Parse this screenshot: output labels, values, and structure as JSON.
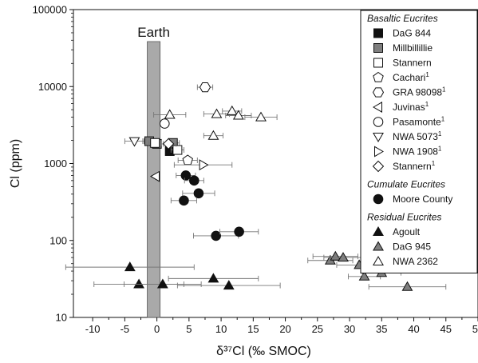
{
  "chart_data": {
    "type": "scatter",
    "title": "",
    "xlabel": "δ³⁷Cl (‰ SMOC)",
    "ylabel": "Cl (ppm)",
    "xlim": [
      -13,
      50
    ],
    "ylim": [
      10,
      100000
    ],
    "yscale": "log",
    "xticks": [
      -10,
      -5,
      0,
      5,
      10,
      15,
      20,
      25,
      30,
      35,
      40,
      45,
      50
    ],
    "yticks": [
      10,
      100,
      1000,
      10000,
      100000
    ],
    "xtick_labels": [
      "-10",
      "-5",
      "0",
      "5",
      "10",
      "15",
      "20",
      "25",
      "30",
      "35",
      "40",
      "45",
      "50"
    ],
    "ytick_labels": [
      "10",
      "100",
      "1000",
      "10000",
      "100000"
    ],
    "grid": false,
    "legend_position": "right",
    "annotation": {
      "label": "Earth",
      "x_range": [
        -1.5,
        0.5
      ]
    },
    "colors": {
      "black": "#111111",
      "gray": "#7f7f7f",
      "white": "#ffffff",
      "band": "#a9a9a9"
    },
    "legend_groups": [
      {
        "title": "Basaltic Eucrites",
        "entries": [
          {
            "label": "DaG 844",
            "sup": "",
            "marker": "square",
            "fill": "black"
          },
          {
            "label": "Millbillillie",
            "sup": "",
            "marker": "square",
            "fill": "gray"
          },
          {
            "label": "Stannern",
            "sup": "",
            "marker": "square",
            "fill": "white"
          },
          {
            "label": "Cachari",
            "sup": "1",
            "marker": "pentagon",
            "fill": "white"
          },
          {
            "label": "GRA 98098",
            "sup": "1",
            "marker": "hexagon",
            "fill": "white"
          },
          {
            "label": "Juvinas",
            "sup": "1",
            "marker": "triangle-left",
            "fill": "white"
          },
          {
            "label": "Pasamonte",
            "sup": "1",
            "marker": "circle",
            "fill": "white"
          },
          {
            "label": "NWA 5073",
            "sup": "1",
            "marker": "triangle-down",
            "fill": "white"
          },
          {
            "label": "NWA 1908",
            "sup": "1",
            "marker": "triangle-right",
            "fill": "white"
          },
          {
            "label": "Stannern",
            "sup": "1",
            "marker": "diamond",
            "fill": "white"
          }
        ]
      },
      {
        "title": "Cumulate Eucrites",
        "entries": [
          {
            "label": "Moore County",
            "sup": "",
            "marker": "circle",
            "fill": "black"
          }
        ]
      },
      {
        "title": "Residual Eucrites",
        "entries": [
          {
            "label": "Agoult",
            "sup": "",
            "marker": "triangle-up",
            "fill": "black"
          },
          {
            "label": "DaG 945",
            "sup": "",
            "marker": "triangle-up",
            "fill": "gray"
          },
          {
            "label": "NWA 2362",
            "sup": "",
            "marker": "triangle-up",
            "fill": "white"
          }
        ]
      }
    ],
    "series": [
      {
        "name": "DaG 844",
        "marker": "square",
        "fill": "black",
        "points": [
          {
            "x": 2.0,
            "y": 1450,
            "xerr": 0
          }
        ]
      },
      {
        "name": "Millbillillie",
        "marker": "square",
        "fill": "gray",
        "points": [
          {
            "x": -1.2,
            "y": 1950,
            "xerr": 1.0
          },
          {
            "x": 0.0,
            "y": 1800,
            "xerr": 1.0
          },
          {
            "x": 2.5,
            "y": 1850,
            "xerr": 1.0
          }
        ]
      },
      {
        "name": "Stannern",
        "marker": "square",
        "fill": "white",
        "points": [
          {
            "x": -0.3,
            "y": 1850,
            "xerr": 1.0
          },
          {
            "x": 3.2,
            "y": 1500,
            "xerr": 1.0
          }
        ]
      },
      {
        "name": "Cachari",
        "marker": "pentagon",
        "fill": "white",
        "points": [
          {
            "x": 4.8,
            "y": 1100,
            "xerr": 1.5
          }
        ]
      },
      {
        "name": "GRA 98098",
        "marker": "hexagon",
        "fill": "white",
        "points": [
          {
            "x": 7.5,
            "y": 9800,
            "xerr": 1.2
          }
        ]
      },
      {
        "name": "Juvinas",
        "marker": "triangle-left",
        "fill": "white",
        "points": [
          {
            "x": -0.2,
            "y": 680,
            "xerr": 0
          }
        ]
      },
      {
        "name": "Pasamonte",
        "marker": "circle",
        "fill": "white",
        "points": [
          {
            "x": 1.2,
            "y": 3300,
            "xerr": 0
          }
        ]
      },
      {
        "name": "NWA 5073",
        "marker": "triangle-down",
        "fill": "white",
        "points": [
          {
            "x": -3.5,
            "y": 1950,
            "xerr": 1.5
          }
        ]
      },
      {
        "name": "NWA 1908",
        "marker": "triangle-right",
        "fill": "white",
        "points": [
          {
            "x": 7.2,
            "y": 960,
            "xerr": 4.5
          }
        ]
      },
      {
        "name": "Stannern (ref. 1)",
        "marker": "diamond",
        "fill": "white",
        "points": [
          {
            "x": 1.8,
            "y": 1800,
            "xerr": 1.2
          }
        ]
      },
      {
        "name": "Moore County",
        "marker": "circle",
        "fill": "black",
        "points": [
          {
            "x": 4.5,
            "y": 700,
            "xerr": 1.5
          },
          {
            "x": 5.8,
            "y": 600,
            "xerr": 1.5
          },
          {
            "x": 6.5,
            "y": 410,
            "xerr": 2.5
          },
          {
            "x": 4.2,
            "y": 330,
            "xerr": 2.0
          },
          {
            "x": 9.2,
            "y": 115,
            "xerr": 3.5
          },
          {
            "x": 12.8,
            "y": 130,
            "xerr": 3.0
          }
        ]
      },
      {
        "name": "Agoult",
        "marker": "triangle-up",
        "fill": "black",
        "points": [
          {
            "x": -4.2,
            "y": 45,
            "xerr": 10.0
          },
          {
            "x": -2.8,
            "y": 27,
            "xerr": 7.0
          },
          {
            "x": 0.9,
            "y": 27,
            "xerr": 6.0
          },
          {
            "x": 8.8,
            "y": 32,
            "xerr": 7.0
          },
          {
            "x": 11.2,
            "y": 26,
            "xerr": 8.0
          }
        ]
      },
      {
        "name": "DaG 945",
        "marker": "triangle-up",
        "fill": "gray",
        "points": [
          {
            "x": 27.0,
            "y": 55,
            "xerr": 3.5
          },
          {
            "x": 27.8,
            "y": 62,
            "xerr": 3.5
          },
          {
            "x": 29.0,
            "y": 60,
            "xerr": 3.0
          },
          {
            "x": 31.5,
            "y": 48,
            "xerr": 3.5
          },
          {
            "x": 32.3,
            "y": 34,
            "xerr": 2.5
          },
          {
            "x": 35.0,
            "y": 38,
            "xerr": 3.0
          },
          {
            "x": 39.0,
            "y": 25,
            "xerr": 6.0
          }
        ]
      },
      {
        "name": "NWA 2362",
        "marker": "triangle-up",
        "fill": "white",
        "points": [
          {
            "x": 2.0,
            "y": 4300,
            "xerr": 2.5
          },
          {
            "x": 8.8,
            "y": 2300,
            "xerr": 1.5
          },
          {
            "x": 9.3,
            "y": 4400,
            "xerr": 2.0
          },
          {
            "x": 11.7,
            "y": 4800,
            "xerr": 1.5
          },
          {
            "x": 12.7,
            "y": 4200,
            "xerr": 2.0
          },
          {
            "x": 16.2,
            "y": 4000,
            "xerr": 2.5
          }
        ]
      }
    ]
  }
}
